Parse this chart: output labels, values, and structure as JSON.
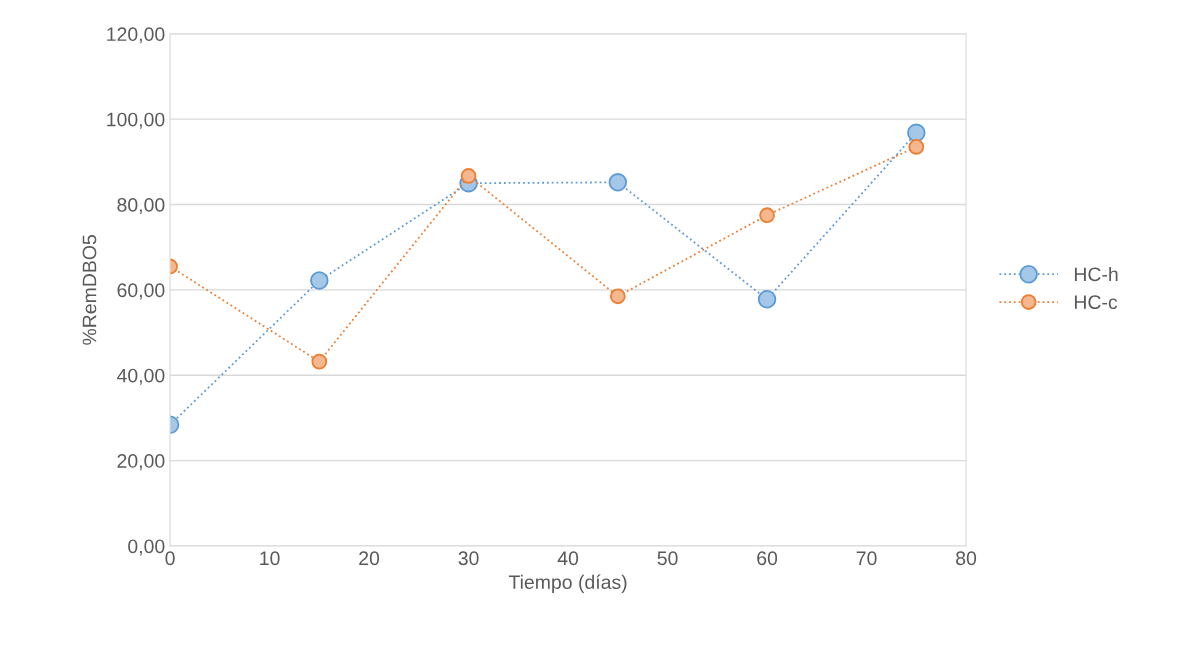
{
  "chart_data": {
    "type": "line",
    "xlabel": "Tiempo (días)",
    "ylabel": "%RemDBO5",
    "x": [
      0,
      15,
      30,
      45,
      60,
      75
    ],
    "series": [
      {
        "name": "HC-h",
        "color": "#5b9bd5",
        "values": [
          28.4,
          62.2,
          85.0,
          85.2,
          57.8,
          96.8
        ]
      },
      {
        "name": "HC-c",
        "color": "#ed7d31",
        "values": [
          65.5,
          43.2,
          86.7,
          58.5,
          77.5,
          93.5
        ]
      }
    ],
    "xlim": [
      0,
      80
    ],
    "xticks": [
      0,
      10,
      20,
      30,
      40,
      50,
      60,
      70,
      80
    ],
    "ylim": [
      0,
      120
    ],
    "yticks": [
      {
        "value": 0,
        "label": "0,00"
      },
      {
        "value": 20,
        "label": "20,00"
      },
      {
        "value": 40,
        "label": "40,00"
      },
      {
        "value": 60,
        "label": "60,00"
      },
      {
        "value": 80,
        "label": "80,00"
      },
      {
        "value": 100,
        "label": "100,00"
      },
      {
        "value": 120,
        "label": "120,00"
      }
    ],
    "grid": "y",
    "legend": "right",
    "marker": "circle",
    "line_style": "dotted"
  }
}
